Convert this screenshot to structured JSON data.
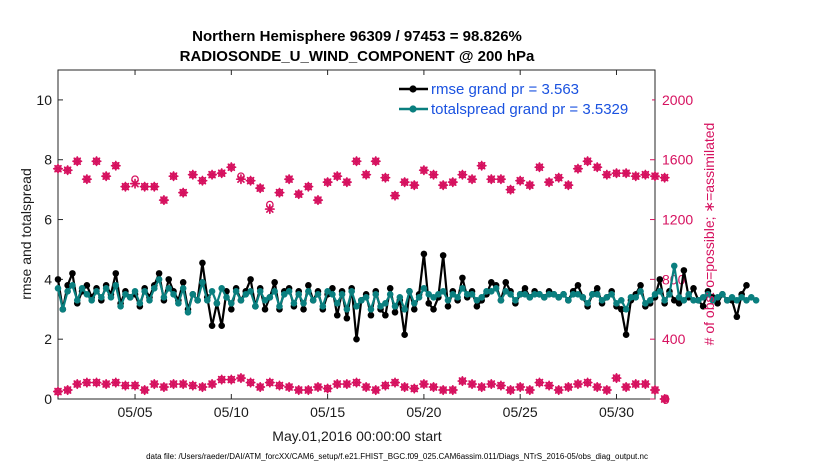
{
  "chart_data": {
    "type": "line",
    "title_line1": "Northern Hemisphere 96309 / 97453 = 98.826%",
    "title_line2": "RADIOSONDE_U_WIND_COMPONENT @ 200 hPa",
    "xlabel": "May.01,2016 00:00:00 start",
    "ylabel_left": "rmse and totalspread",
    "ylabel_right": "# of obs: o=possible; ∗=assimilated",
    "footer": "data file: /Users/raeder/DAI/ATM_forcXX/CAM6_setup/f.e21.FHIST_BGC.f09_025.CAM6assim.011/Diags_NTrS_2016-05/obs_diag_output.nc",
    "x_range_days": [
      1,
      32
    ],
    "x_tick_days": [
      5,
      10,
      15,
      20,
      25,
      30
    ],
    "x_tick_labels": [
      "05/05",
      "05/10",
      "05/15",
      "05/20",
      "05/25",
      "05/30"
    ],
    "ylim_left": [
      0,
      11
    ],
    "y_ticks_left": [
      0,
      2,
      4,
      6,
      8,
      10
    ],
    "y_tick_labels_left": [
      "0",
      "2",
      "4",
      "6",
      "8",
      "10"
    ],
    "ylim_right": [
      0,
      2200
    ],
    "y_ticks_right": [
      0,
      400,
      800,
      1200,
      1600,
      2000
    ],
    "y_tick_labels_right": [
      "0",
      "400",
      "800",
      "1200",
      "1600",
      "2000"
    ],
    "series": [
      {
        "name": "rmse",
        "legend": "rmse grand pr = 3.563",
        "color": "#000000",
        "x_start_day": 1,
        "step_days": 0.25,
        "values": [
          4.0,
          3.0,
          3.8,
          4.2,
          3.2,
          3.6,
          3.8,
          3.4,
          3.7,
          3.3,
          3.8,
          3.5,
          4.2,
          3.2,
          3.6,
          3.4,
          3.5,
          3.1,
          3.7,
          3.4,
          3.8,
          4.2,
          3.3,
          4.0,
          3.6,
          3.3,
          3.9,
          3.0,
          3.5,
          3.3,
          4.55,
          3.4,
          2.45,
          3.2,
          2.45,
          3.6,
          3.0,
          3.7,
          3.3,
          3.6,
          4.0,
          3.1,
          3.7,
          3.0,
          3.4,
          3.9,
          3.0,
          3.6,
          3.7,
          3.1,
          3.6,
          3.0,
          3.8,
          3.3,
          3.6,
          3.0,
          3.5,
          3.7,
          2.8,
          3.6,
          2.7,
          3.7,
          2.0,
          3.3,
          3.5,
          2.8,
          3.6,
          3.0,
          2.8,
          3.7,
          2.9,
          3.3,
          2.15,
          3.6,
          3.0,
          3.5,
          4.85,
          3.2,
          3.0,
          3.4,
          4.8,
          3.1,
          3.6,
          3.3,
          4.05,
          3.4,
          3.6,
          3.1,
          3.3,
          3.5,
          3.9,
          3.8,
          3.3,
          3.9,
          3.6,
          3.2,
          3.5,
          3.7,
          3.4,
          3.6,
          3.5,
          3.4,
          3.6,
          3.5,
          3.4,
          3.5,
          3.3,
          3.6,
          3.8,
          3.4,
          3.1,
          3.5,
          3.7,
          3.2,
          3.4,
          3.6,
          3.1,
          3.0,
          2.15,
          3.3,
          3.5,
          3.8,
          3.1,
          3.2,
          3.4,
          4.0,
          3.2,
          3.6,
          3.3,
          3.2,
          4.3,
          3.4,
          3.7,
          3.3,
          3.1,
          3.6,
          3.4,
          3.2,
          3.5,
          3.3,
          3.3,
          2.75,
          3.5,
          3.8
        ]
      },
      {
        "name": "totalspread",
        "legend": "totalspread grand pr = 3.5329",
        "color": "#0a7f7f",
        "x_start_day": 1,
        "step_days": 0.25,
        "values": [
          3.7,
          3.0,
          3.6,
          3.8,
          3.3,
          3.7,
          3.5,
          3.3,
          3.6,
          3.4,
          3.7,
          3.4,
          3.8,
          3.1,
          3.5,
          3.4,
          3.6,
          3.2,
          3.6,
          3.3,
          3.7,
          4.0,
          3.4,
          3.7,
          3.5,
          3.2,
          3.7,
          2.9,
          3.5,
          3.3,
          3.9,
          3.3,
          3.6,
          3.2,
          3.7,
          3.4,
          3.2,
          3.6,
          3.3,
          3.5,
          3.6,
          3.1,
          3.6,
          3.3,
          3.4,
          3.6,
          3.1,
          3.5,
          3.6,
          3.2,
          3.5,
          3.2,
          3.6,
          3.3,
          3.5,
          3.1,
          3.6,
          3.5,
          3.2,
          3.5,
          3.0,
          3.6,
          3.1,
          3.3,
          3.4,
          3.0,
          3.5,
          3.1,
          3.2,
          3.5,
          3.1,
          3.4,
          3.0,
          3.6,
          3.2,
          3.4,
          3.7,
          3.5,
          3.4,
          3.5,
          3.6,
          3.3,
          3.5,
          3.4,
          3.7,
          3.5,
          3.5,
          3.3,
          3.4,
          3.6,
          3.6,
          3.7,
          3.3,
          3.6,
          3.5,
          3.3,
          3.5,
          3.5,
          3.4,
          3.5,
          3.5,
          3.4,
          3.5,
          3.5,
          3.4,
          3.5,
          3.3,
          3.5,
          3.5,
          3.4,
          3.2,
          3.5,
          3.5,
          3.3,
          3.4,
          3.5,
          3.2,
          3.3,
          3.0,
          3.4,
          3.4,
          3.6,
          3.2,
          3.3,
          3.5,
          3.6,
          3.3,
          3.5,
          4.45,
          3.4,
          3.3,
          3.5,
          3.3,
          3.3,
          3.4,
          3.5,
          3.3,
          3.4,
          3.5,
          3.3,
          3.4,
          3.3,
          3.4,
          3.3,
          3.4,
          3.3
        ]
      },
      {
        "name": "obs_possible",
        "marker": "o",
        "color": "#d6115f",
        "axis": "right",
        "x_start_day": 1,
        "step_days": 0.5,
        "values": [
          1540,
          1530,
          1590,
          1470,
          1590,
          1490,
          1560,
          1420,
          1470,
          1420,
          1420,
          1330,
          1490,
          1380,
          1500,
          1460,
          1500,
          1510,
          1550,
          1490,
          1460,
          1410,
          1300,
          1380,
          1470,
          1370,
          1420,
          1330,
          1450,
          1490,
          1450,
          1590,
          1500,
          1590,
          1480,
          1360,
          1450,
          1430,
          1530,
          1500,
          1430,
          1450,
          1500,
          1470,
          1560,
          1470,
          1470,
          1400,
          1460,
          1430,
          1550,
          1450,
          1480,
          1430,
          1540,
          1590,
          1550,
          1500,
          1510,
          1510,
          1490,
          1500,
          1490,
          1480
        ]
      },
      {
        "name": "obs_assimilated",
        "marker": "*",
        "color": "#d6115f",
        "axis": "right",
        "x_start_day": 1,
        "step_days": 0.5,
        "values": [
          1540,
          1530,
          1590,
          1470,
          1590,
          1490,
          1560,
          1420,
          1440,
          1420,
          1420,
          1330,
          1490,
          1380,
          1500,
          1460,
          1500,
          1510,
          1550,
          1470,
          1460,
          1410,
          1270,
          1380,
          1470,
          1370,
          1420,
          1330,
          1450,
          1490,
          1450,
          1590,
          1500,
          1590,
          1480,
          1360,
          1450,
          1430,
          1530,
          1500,
          1430,
          1450,
          1500,
          1470,
          1560,
          1470,
          1470,
          1400,
          1460,
          1430,
          1550,
          1450,
          1480,
          1430,
          1540,
          1590,
          1550,
          1500,
          1510,
          1510,
          1490,
          1500,
          1490,
          1480
        ]
      },
      {
        "name": "obs_low",
        "marker": "o*",
        "color": "#d6115f",
        "axis": "right",
        "x_start_day": 1,
        "step_days": 0.5,
        "values": [
          50,
          60,
          100,
          110,
          110,
          100,
          110,
          90,
          90,
          60,
          100,
          80,
          100,
          100,
          90,
          80,
          100,
          130,
          130,
          140,
          110,
          80,
          110,
          90,
          80,
          60,
          60,
          80,
          70,
          100,
          100,
          110,
          80,
          60,
          90,
          110,
          80,
          70,
          100,
          80,
          60,
          60,
          120,
          100,
          80,
          100,
          90,
          60,
          80,
          60,
          110,
          90,
          60,
          80,
          100,
          110,
          80,
          60,
          140,
          80,
          100,
          100,
          60,
          0
        ]
      }
    ]
  }
}
